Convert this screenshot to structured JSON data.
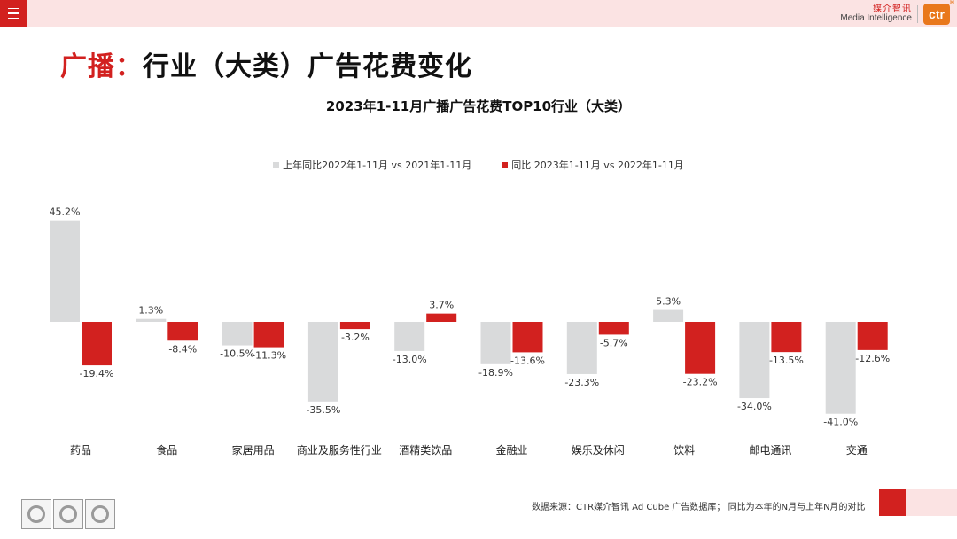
{
  "header": {
    "logo_cn": "媒介智讯",
    "logo_en": "Media Intelligence",
    "logo_mark": "ctr",
    "logo_reg": "®"
  },
  "page_title": {
    "accent": "广播：",
    "rest": "行业（大类）广告花费变化"
  },
  "footer": {
    "source": "数据来源：CTR媒介智讯 Ad Cube 广告数据库；  同比为本年的N月与上年N月的对比"
  },
  "colors": {
    "prev": "#d9dadb",
    "curr": "#d2211f",
    "accent": "#d2211f",
    "band": "#fbe3e3"
  },
  "chart_data": {
    "type": "bar",
    "title": "2023年1-11月广播广告花费TOP10行业（大类）",
    "legend_position": "top-center",
    "grid": false,
    "ylim": [
      -45,
      50
    ],
    "categories": [
      "药品",
      "食品",
      "家居用品",
      "商业及服务性行业",
      "酒精类饮品",
      "金融业",
      "娱乐及休闲",
      "饮料",
      "邮电通讯",
      "交通"
    ],
    "series": [
      {
        "name": "上年同比2022年1-11月  vs  2021年1-11月",
        "values": [
          45.2,
          1.3,
          -10.5,
          -35.5,
          -13.0,
          -18.9,
          -23.3,
          5.3,
          -34.0,
          -41.0
        ]
      },
      {
        "name": "同比 2023年1-11月  vs  2022年1-11月",
        "values": [
          -19.4,
          -8.4,
          -11.3,
          -3.2,
          3.7,
          -13.6,
          -5.7,
          -23.2,
          -13.5,
          -12.6
        ]
      }
    ]
  }
}
